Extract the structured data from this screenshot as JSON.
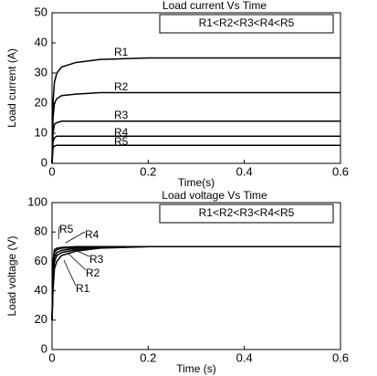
{
  "chart_data": [
    {
      "type": "line",
      "title": "Load current Vs Time",
      "xlabel": "Time(s)",
      "ylabel": "Load current (A)",
      "annotation": "R1<R2<R3<R4<R5",
      "x": [
        0,
        0.002,
        0.005,
        0.01,
        0.02,
        0.05,
        0.1,
        0.2,
        0.4,
        0.6
      ],
      "series": [
        {
          "name": "R1",
          "color": "#000000",
          "values": [
            0,
            20,
            27,
            30,
            32,
            33.5,
            34.5,
            35,
            35,
            35
          ]
        },
        {
          "name": "R2",
          "color": "#000000",
          "values": [
            0,
            15,
            20,
            21.5,
            22.5,
            23,
            23.5,
            23.5,
            23.5,
            23.5
          ]
        },
        {
          "name": "R3",
          "color": "#000000",
          "values": [
            0,
            10,
            13,
            13.5,
            14,
            14,
            14,
            14,
            14,
            14
          ]
        },
        {
          "name": "R4",
          "color": "#000000",
          "values": [
            0,
            7,
            8.5,
            9,
            9,
            9,
            9,
            9,
            9,
            9
          ]
        },
        {
          "name": "R5",
          "color": "#000000",
          "values": [
            0,
            5,
            5.8,
            6,
            6,
            6,
            6,
            6,
            6,
            6
          ]
        }
      ],
      "xlim": [
        0,
        0.6
      ],
      "xticks": [
        0,
        0.2,
        0.4,
        0.6
      ],
      "ylim": [
        0,
        50
      ],
      "yticks": [
        0,
        10,
        20,
        30,
        40,
        50
      ]
    },
    {
      "type": "line",
      "title": "Load voltage Vs Time",
      "xlabel": "Time (s)",
      "ylabel": "Load voltage (V)",
      "annotation": "R1<R2<R3<R4<R5",
      "x": [
        0,
        0.002,
        0.005,
        0.01,
        0.02,
        0.05,
        0.1,
        0.2,
        0.4,
        0.6
      ],
      "series": [
        {
          "name": "R1",
          "color": "#000000",
          "values": [
            20,
            40,
            55,
            60,
            64,
            67,
            69,
            70,
            70,
            70
          ]
        },
        {
          "name": "R2",
          "color": "#000000",
          "values": [
            20,
            45,
            60,
            64,
            66,
            68,
            69.5,
            70,
            70,
            70
          ]
        },
        {
          "name": "R3",
          "color": "#000000",
          "values": [
            20,
            50,
            63,
            66,
            67.5,
            69,
            70,
            70,
            70,
            70
          ]
        },
        {
          "name": "R4",
          "color": "#000000",
          "values": [
            20,
            55,
            66,
            68,
            69,
            69.5,
            70,
            70,
            70,
            70
          ]
        },
        {
          "name": "R5",
          "color": "#000000",
          "values": [
            20,
            60,
            68,
            69,
            69.5,
            70,
            70,
            70,
            70,
            70
          ]
        }
      ],
      "xlim": [
        0,
        0.6
      ],
      "xticks": [
        0,
        0.2,
        0.4,
        0.6
      ],
      "ylim": [
        0,
        100
      ],
      "yticks": [
        0,
        20,
        40,
        60,
        80,
        100
      ]
    }
  ]
}
